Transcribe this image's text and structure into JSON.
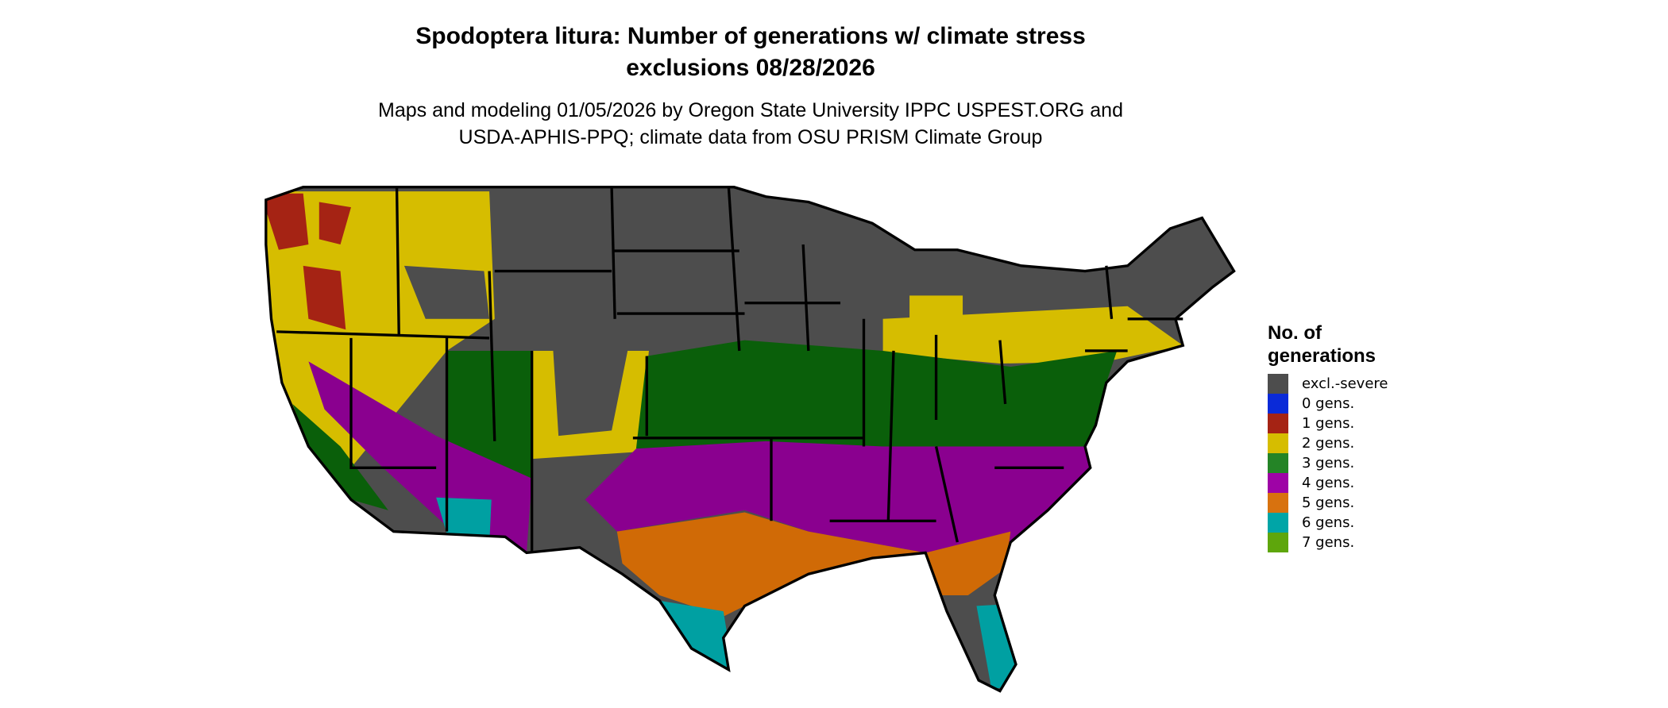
{
  "title_line1": "Spodoptera litura: Number of generations w/ climate stress",
  "title_line2": "exclusions 08/28/2026",
  "subtitle_line1": "Maps and modeling 01/05/2026 by Oregon State University IPPC USPEST.ORG and",
  "subtitle_line2": "USDA-APHIS-PPQ; climate data from OSU PRISM Climate Group",
  "legend": {
    "title_line1": "No. of",
    "title_line2": "generations",
    "items": [
      {
        "label": "excl.-severe",
        "color": "#4d4d4d"
      },
      {
        "label": "0 gens.",
        "color": "#0a2ad8"
      },
      {
        "label": "1 gens.",
        "color": "#a52314"
      },
      {
        "label": "2 gens.",
        "color": "#d6bd00"
      },
      {
        "label": "3 gens.",
        "color": "#248426"
      },
      {
        "label": "4 gens.",
        "color": "#9e03a6"
      },
      {
        "label": "5 gens.",
        "color": "#d8720f"
      },
      {
        "label": "6 gens.",
        "color": "#00a5a7"
      },
      {
        "label": "7 gens.",
        "color": "#5ea60c"
      }
    ]
  }
}
